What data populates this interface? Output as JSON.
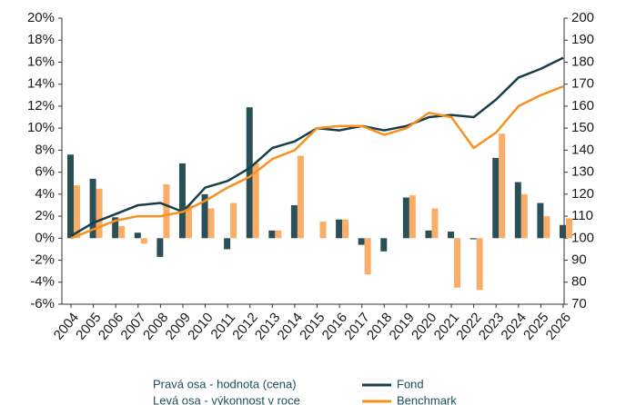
{
  "chart_data": {
    "type": "bar_line",
    "categories": [
      "2004",
      "2005",
      "2006",
      "2007",
      "2008",
      "2009",
      "2010",
      "2011",
      "2012",
      "2013",
      "2014",
      "2015",
      "2016",
      "2017",
      "2018",
      "2019",
      "2020",
      "2021",
      "2022",
      "2023",
      "2024",
      "2025",
      "2026"
    ],
    "y2_label": "Pravá osa - hodnota (cena)",
    "y_label": "Levá osa - výkonnost v roce",
    "bars": [
      {
        "color": "#2b4f57",
        "values": [
          7.6,
          5.4,
          1.9,
          0.5,
          -1.7,
          6.8,
          4.0,
          -1.0,
          11.9,
          0.7,
          3.0,
          0,
          1.7,
          -0.6,
          -1.2,
          3.7,
          0.7,
          0.6,
          -0.1,
          7.3,
          5.1,
          3.2,
          1.2
        ]
      },
      {
        "color": "#f9ad68",
        "values": [
          4.8,
          4.5,
          1.1,
          -0.5,
          4.9,
          3.0,
          2.7,
          3.2,
          6.8,
          0.7,
          7.5,
          1.5,
          1.7,
          -3.3,
          0,
          3.9,
          2.7,
          -4.5,
          -4.7,
          9.5,
          4.0,
          2.0,
          1.8
        ]
      }
    ],
    "series": [
      {
        "name": "Fond",
        "color": "#173f48",
        "axis": "y2",
        "values": [
          101,
          107,
          111,
          115,
          116,
          112,
          123,
          126,
          132,
          141,
          144,
          150,
          149,
          151,
          149,
          151,
          155,
          156,
          155,
          163,
          173,
          177,
          182
        ]
      },
      {
        "name": "Benchmark",
        "color": "#f7901e",
        "axis": "y2",
        "values": [
          100,
          104,
          108,
          110,
          110,
          112,
          117,
          123,
          128,
          136,
          140,
          150,
          151,
          151,
          147,
          150,
          157,
          155,
          141,
          148,
          160,
          165,
          169
        ]
      }
    ],
    "ylim": [
      -6,
      20
    ],
    "yticks": [
      {
        "value": -6,
        "label": "-6%"
      },
      {
        "value": -4,
        "label": "-4%"
      },
      {
        "value": -2,
        "label": "-2%"
      },
      {
        "value": 0,
        "label": "0%"
      },
      {
        "value": 2,
        "label": "2%"
      },
      {
        "value": 4,
        "label": "4%"
      },
      {
        "value": 6,
        "label": "6%"
      },
      {
        "value": 8,
        "label": "8%"
      },
      {
        "value": 10,
        "label": "10%"
      },
      {
        "value": 12,
        "label": "12%"
      },
      {
        "value": 14,
        "label": "14%"
      },
      {
        "value": 16,
        "label": "16%"
      },
      {
        "value": 18,
        "label": "18%"
      },
      {
        "value": 20,
        "label": "20%"
      }
    ],
    "y2lim": [
      70,
      200
    ],
    "y2ticks": [
      70,
      80,
      90,
      100,
      110,
      120,
      130,
      140,
      150,
      160,
      170,
      180,
      190,
      200
    ]
  }
}
